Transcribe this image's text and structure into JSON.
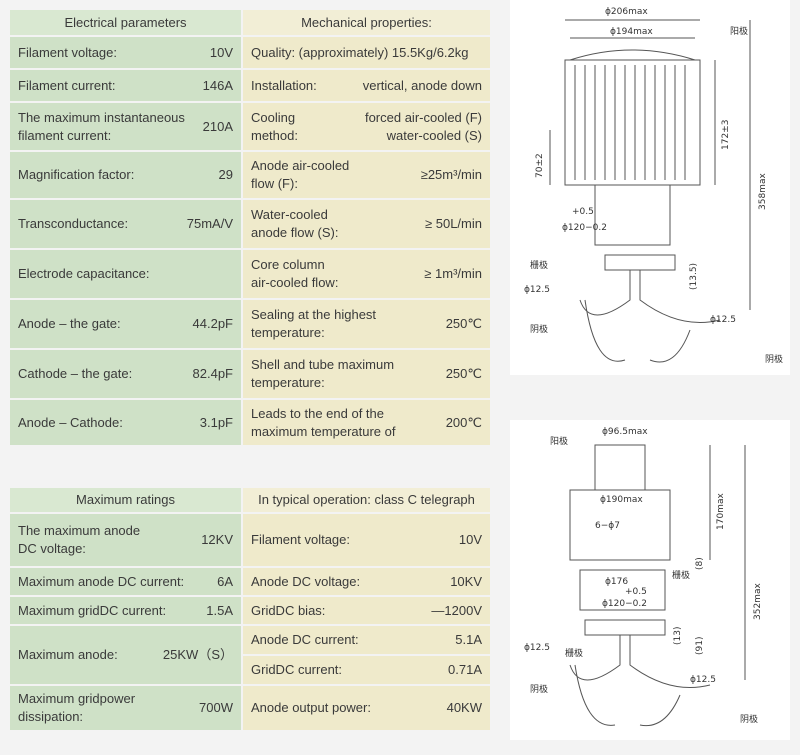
{
  "electrical": {
    "header": "Electrical parameters",
    "rows": [
      {
        "label": [
          "Filament voltage:"
        ],
        "value": [
          "10V"
        ]
      },
      {
        "label": [
          "Filament current:"
        ],
        "value": [
          "146A"
        ]
      },
      {
        "label": [
          "The maximum instantaneous",
          "filament current:"
        ],
        "value": [
          "210A"
        ]
      },
      {
        "label": [
          "Magnification factor:"
        ],
        "value": [
          "29"
        ]
      },
      {
        "label": [
          "Transconductance:"
        ],
        "value": [
          "75mA/V"
        ]
      },
      {
        "label": [
          "Electrode capacitance:"
        ],
        "value": []
      },
      {
        "label": [
          "Anode – the gate:"
        ],
        "value": [
          "44.2pF"
        ]
      },
      {
        "label": [
          "Cathode – the gate:"
        ],
        "value": [
          "82.4pF"
        ]
      },
      {
        "label": [
          "Anode – Cathode:"
        ],
        "value": [
          "3.1pF"
        ]
      }
    ]
  },
  "mechanical": {
    "header": "Mechanical properties:",
    "rows": [
      {
        "label": [
          "Quality: (approximately) 15.5Kg/6.2kg"
        ],
        "value": []
      },
      {
        "label": [
          "Installation:"
        ],
        "value": [
          "vertical, anode down"
        ]
      },
      {
        "label": [
          "Cooling",
          "method:"
        ],
        "value": [
          "forced air-cooled (F)",
          "water-cooled (S)"
        ]
      },
      {
        "label": [
          "Anode air-cooled",
          "flow (F):"
        ],
        "value": [
          "≥25m³/min"
        ]
      },
      {
        "label": [
          "Water-cooled",
          "anode flow (S):"
        ],
        "value": [
          "≥ 50L/min"
        ]
      },
      {
        "label": [
          "Core column",
          "air-cooled flow:"
        ],
        "value": [
          "≥ 1m³/min"
        ]
      },
      {
        "label": [
          "Sealing at the highest",
          "temperature:"
        ],
        "value": [
          "250℃"
        ]
      },
      {
        "label": [
          "Shell and tube maximum",
          "temperature:"
        ],
        "value": [
          "250℃"
        ]
      },
      {
        "label": [
          "Leads to the end of the",
          "maximum temperature of"
        ],
        "value": [
          "200℃"
        ]
      }
    ]
  },
  "ratings": {
    "header": "Maximum ratings",
    "rows": [
      {
        "label": [
          "The maximum anode",
          "DC voltage:"
        ],
        "value": [
          "12KV"
        ]
      },
      {
        "label": [
          "Maximum anode DC current:"
        ],
        "value": [
          "6A"
        ]
      },
      {
        "label": [
          "Maximum gridDC current:"
        ],
        "value": [
          "1.5A"
        ]
      },
      {
        "label": [
          "Maximum anode:"
        ],
        "value": [
          "25KW（S）"
        ]
      },
      {
        "label": [
          "Maximum gridpower",
          "dissipation:"
        ],
        "value": [
          "700W"
        ]
      }
    ]
  },
  "operation": {
    "header": "In typical operation: class C telegraph",
    "rows": [
      {
        "label": [
          "Filament voltage:"
        ],
        "value": [
          "10V"
        ]
      },
      {
        "label": [
          "Anode DC voltage:"
        ],
        "value": [
          "10KV"
        ]
      },
      {
        "label": [
          "GridDC bias:"
        ],
        "value": [
          "—1200V"
        ]
      },
      {
        "label": [
          "Anode DC current:"
        ],
        "value": [
          "5.1A"
        ]
      },
      {
        "label": [
          "GridDC current:"
        ],
        "value": [
          "0.71A"
        ]
      },
      {
        "label": [
          "Anode output power:"
        ],
        "value": [
          "40KW"
        ]
      }
    ]
  },
  "diagram_top": {
    "labels": [
      "ϕ206max",
      "ϕ194max",
      "阳极",
      "172±3",
      "70±2",
      "358max",
      "+0.5",
      "ϕ120−0.2",
      "栅极",
      "(13.5)",
      "ϕ12.5",
      "ϕ12.5",
      "阴极",
      "阴极"
    ]
  },
  "diagram_bottom": {
    "labels": [
      "阳极",
      "ϕ96.5max",
      "ϕ190max",
      "170max",
      "6−ϕ7",
      "(8)",
      "栅极",
      "ϕ176",
      "+0.5",
      "ϕ120−0.2",
      "352max",
      "(13)",
      "(91)",
      "ϕ12.5",
      "栅极",
      "ϕ12.5",
      "阴极",
      "阴极"
    ]
  }
}
